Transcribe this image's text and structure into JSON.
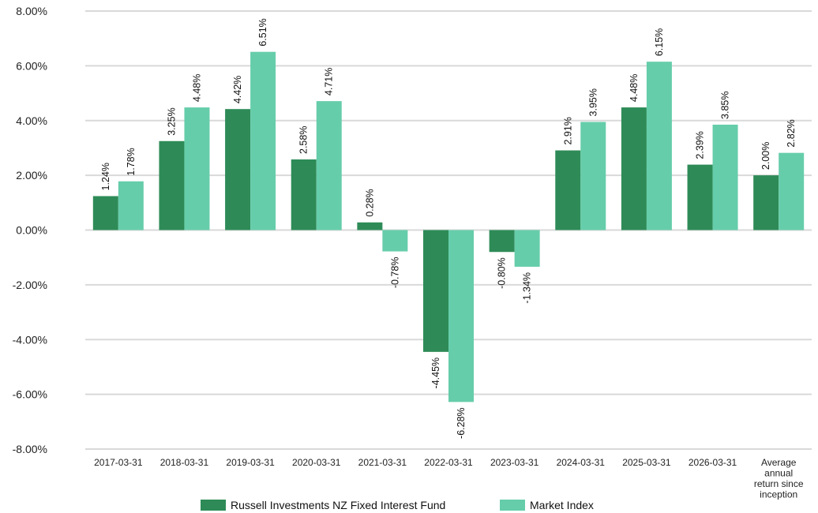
{
  "chart_data": {
    "type": "bar",
    "categories": [
      "2017-03-31",
      "2018-03-31",
      "2019-03-31",
      "2020-03-31",
      "2021-03-31",
      "2022-03-31",
      "2023-03-31",
      "2024-03-31",
      "2025-03-31",
      "2026-03-31",
      "Average annual return since inception"
    ],
    "series": [
      {
        "name": "Russell Investments NZ Fixed Interest Fund",
        "color": "#2e8b57",
        "values": [
          1.24,
          3.25,
          4.42,
          2.58,
          0.28,
          -4.45,
          -0.8,
          2.91,
          4.48,
          2.39,
          2.0
        ],
        "labels": [
          "1.24%",
          "3.25%",
          "4.42%",
          "2.58%",
          "0.28%",
          "-4.45%",
          "-0.80%",
          "2.91%",
          "4.48%",
          "2.39%",
          "2.00%"
        ]
      },
      {
        "name": "Market Index",
        "color": "#66cdaa",
        "values": [
          1.78,
          4.48,
          6.51,
          4.71,
          -0.78,
          -6.28,
          -1.34,
          3.95,
          6.15,
          3.85,
          2.82
        ],
        "labels": [
          "1.78%",
          "4.48%",
          "6.51%",
          "4.71%",
          "-0.78%",
          "-6.28%",
          "-1.34%",
          "3.95%",
          "6.15%",
          "3.85%",
          "2.82%"
        ]
      }
    ],
    "yticks": [
      "8.00%",
      "6.00%",
      "4.00%",
      "2.00%",
      "0.00%",
      "-2.00%",
      "-4.00%",
      "-6.00%",
      "-8.00%"
    ],
    "ylim": [
      -8,
      8
    ],
    "grid": true,
    "legend_position": "bottom-center"
  }
}
